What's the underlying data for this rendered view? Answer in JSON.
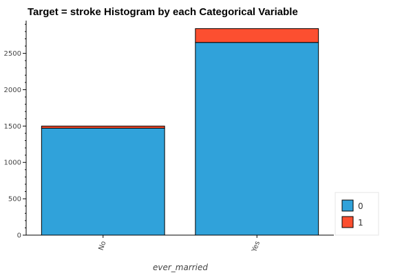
{
  "chart_data": {
    "type": "bar",
    "stacked": true,
    "title": "Target = stroke Histogram by each Categorical Variable",
    "xlabel": "ever_married",
    "ylabel": "",
    "categories": [
      "No",
      "Yes"
    ],
    "series": [
      {
        "name": "0",
        "color": "#30a2da",
        "values": [
          1471,
          2650
        ]
      },
      {
        "name": "1",
        "color": "#fc4f30",
        "values": [
          29,
          190
        ]
      }
    ],
    "ylim": [
      0,
      2950
    ],
    "yticks": [
      0,
      500,
      1000,
      1500,
      2000,
      2500
    ],
    "grid": false,
    "legend": "bottom-right"
  }
}
